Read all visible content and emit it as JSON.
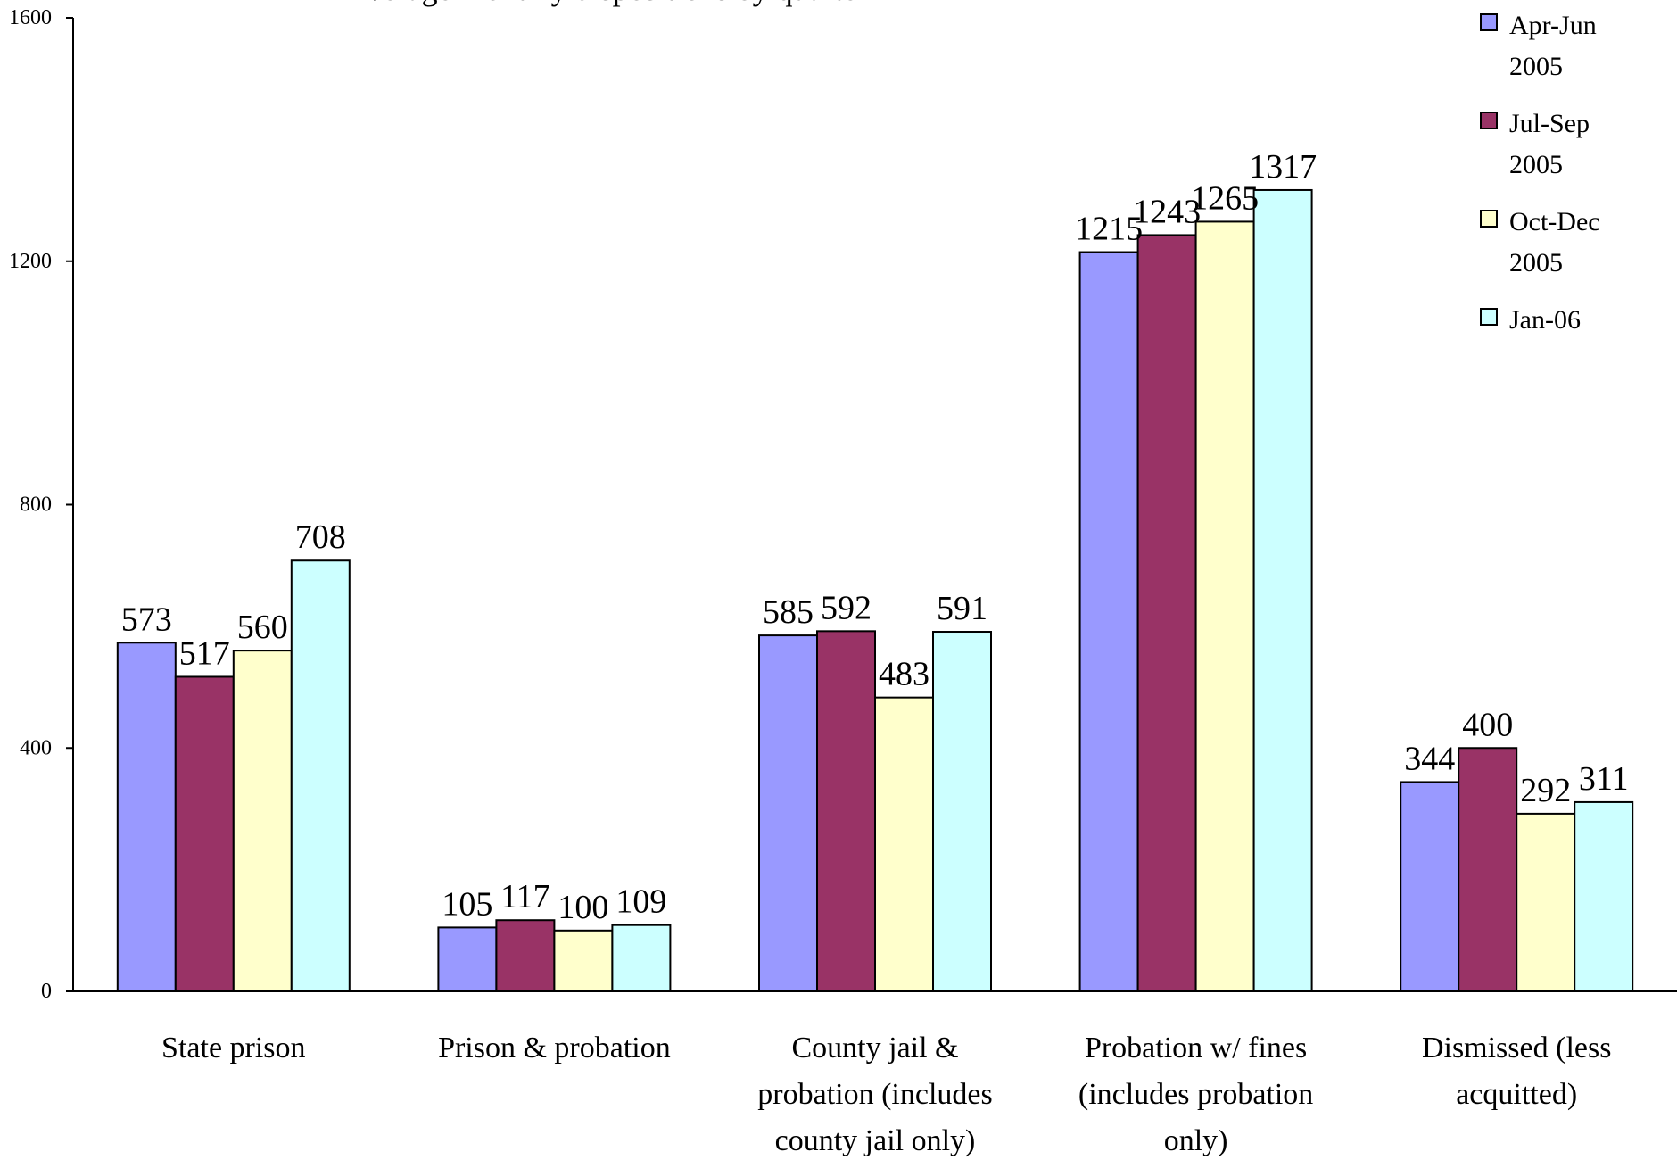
{
  "chart_data": {
    "type": "bar",
    "title": "Average monthly dispositions by quarter",
    "xlabel": "",
    "ylabel": "",
    "ylim": [
      0,
      1600
    ],
    "yticks": [
      0,
      400,
      800,
      1200,
      1600
    ],
    "grid": false,
    "legend_position": "top-right",
    "categories": [
      [
        "State prison"
      ],
      [
        "Prison & probation"
      ],
      [
        "County jail &",
        "probation (includes",
        "county jail only)"
      ],
      [
        "Probation w/ fines",
        "(includes probation",
        "only)"
      ],
      [
        "Dismissed (less",
        "acquitted)"
      ]
    ],
    "series": [
      {
        "name": [
          "Apr-Jun",
          "2005"
        ],
        "color": "#9999ff",
        "values": [
          573,
          105,
          585,
          1215,
          344
        ]
      },
      {
        "name": [
          "Jul-Sep",
          "2005"
        ],
        "color": "#993366",
        "values": [
          517,
          117,
          592,
          1243,
          400
        ]
      },
      {
        "name": [
          "Oct-Dec",
          "2005"
        ],
        "color": "#ffffcc",
        "values": [
          560,
          100,
          483,
          1265,
          292
        ]
      },
      {
        "name": [
          "Jan-06"
        ],
        "color": "#ccffff",
        "values": [
          708,
          109,
          591,
          1317,
          311
        ]
      }
    ]
  }
}
